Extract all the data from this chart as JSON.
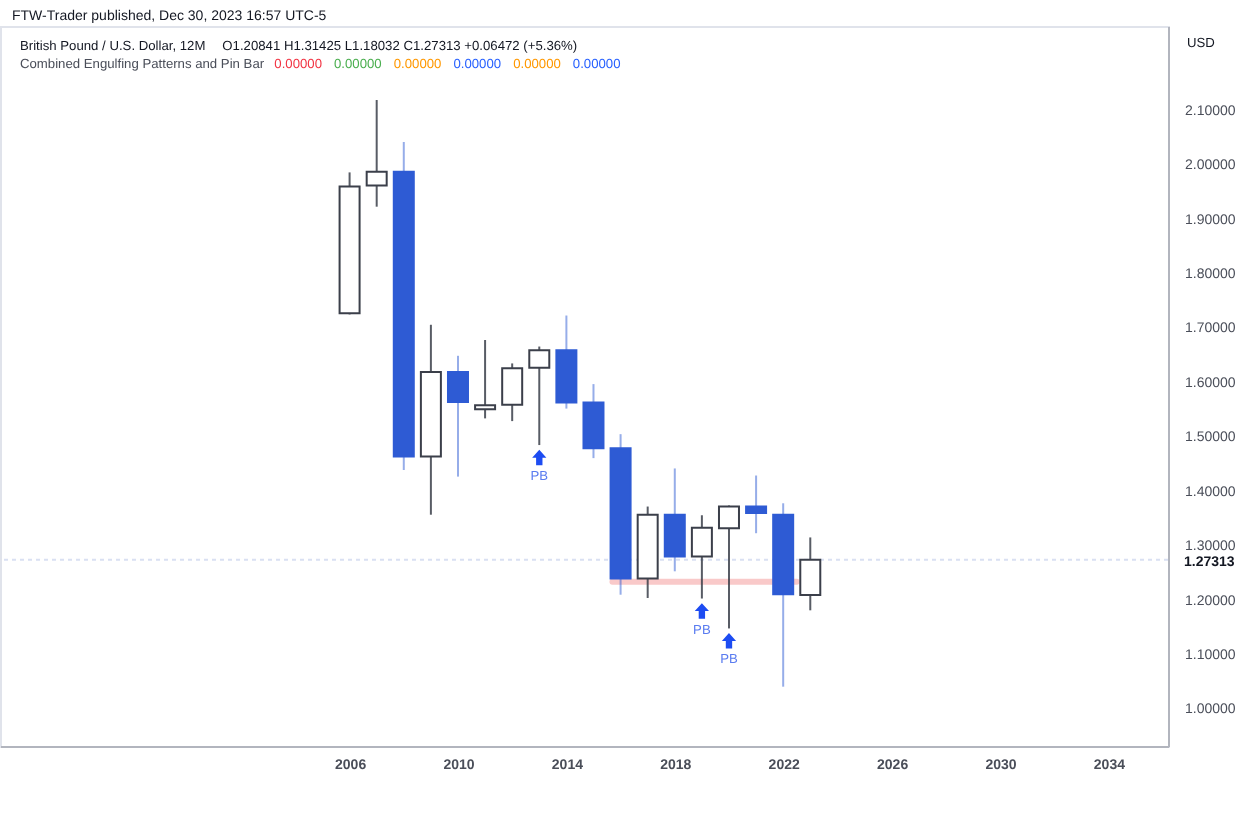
{
  "chart_data": {
    "type": "candlestick",
    "title": "FTW-Trader published, Dec 30, 2023 16:57 UTC-5",
    "subtitle": "British Pound / U.S. Dollar, 12M",
    "ylabel": "USD",
    "x": [
      2006,
      2007,
      2008,
      2009,
      2010,
      2011,
      2012,
      2013,
      2014,
      2015,
      2016,
      2017,
      2018,
      2019,
      2020,
      2021,
      2022,
      2023
    ],
    "ohlc": [
      [
        1.726,
        1.985,
        1.724,
        1.959
      ],
      [
        1.961,
        2.118,
        1.922,
        1.986
      ],
      [
        1.986,
        2.041,
        1.438,
        1.463
      ],
      [
        1.463,
        1.705,
        1.356,
        1.618
      ],
      [
        1.618,
        1.648,
        1.426,
        1.563
      ],
      [
        1.55,
        1.677,
        1.533,
        1.557
      ],
      [
        1.558,
        1.634,
        1.528,
        1.625
      ],
      [
        1.626,
        1.665,
        1.484,
        1.658
      ],
      [
        1.658,
        1.722,
        1.551,
        1.562
      ],
      [
        1.562,
        1.596,
        1.46,
        1.478
      ],
      [
        1.478,
        1.504,
        1.209,
        1.239
      ],
      [
        1.239,
        1.371,
        1.203,
        1.356
      ],
      [
        1.356,
        1.441,
        1.252,
        1.279
      ],
      [
        1.279,
        1.355,
        1.202,
        1.332
      ],
      [
        1.331,
        1.373,
        1.147,
        1.371
      ],
      [
        1.371,
        1.428,
        1.322,
        1.359
      ],
      [
        1.356,
        1.377,
        1.04,
        1.21
      ],
      [
        1.20841,
        1.31425,
        1.18032,
        1.27313
      ]
    ],
    "colors": [
      "#3b3f4a",
      "#3b3f4a",
      "#2e5bd4",
      "#3b3f4a",
      "#2e5bd4",
      "#3b3f4a",
      "#3b3f4a",
      "#3b3f4a",
      "#2e5bd4",
      "#2e5bd4",
      "#2e5bd4",
      "#3b3f4a",
      "#2e5bd4",
      "#3b3f4a",
      "#3b3f4a",
      "#2e5bd4",
      "#2e5bd4",
      "#3b3f4a"
    ],
    "series": [
      {
        "type": "line",
        "x": [
          2015.7,
          2022.5
        ],
        "values": [
          1.233,
          1.233
        ],
        "color": "#f9c9c9"
      }
    ],
    "ref_lines": [
      {
        "axis": "y",
        "value": 1.27313,
        "label": "1.27313",
        "line_style": "dotted",
        "color": "#d9e0f2"
      }
    ],
    "xlim": [
      1993.1,
      2036.2
    ],
    "xticks": [
      2006,
      2010,
      2014,
      2018,
      2022,
      2026,
      2030,
      2034
    ],
    "ylim": [
      0.931,
      2.254
    ],
    "yticks": [
      {
        "value": 1.0,
        "label": "1.00000"
      },
      {
        "value": 1.1,
        "label": "1.10000"
      },
      {
        "value": 1.2,
        "label": "1.20000"
      },
      {
        "value": 1.3,
        "label": "1.30000"
      },
      {
        "value": 1.4,
        "label": "1.40000"
      },
      {
        "value": 1.5,
        "label": "1.50000"
      },
      {
        "value": 1.6,
        "label": "1.60000"
      },
      {
        "value": 1.7,
        "label": "1.70000"
      },
      {
        "value": 1.8,
        "label": "1.80000"
      },
      {
        "value": 1.9,
        "label": "1.90000"
      },
      {
        "value": 2.0,
        "label": "2.00000"
      },
      {
        "value": 2.1,
        "label": "2.10000"
      }
    ],
    "annotations": [
      "O1.20841 H1.31425 L1.18032 C1.27313 +0.06472 (+5.36%)",
      "Combined Engulfing Patterns and Pin Bar",
      "0.00000",
      "0.00000",
      "0.00000",
      "0.00000",
      "0.00000",
      "0.00000",
      {
        "text": "PB",
        "x": 2013,
        "y": 1.484
      },
      {
        "text": "PB",
        "x": 2019,
        "y": 1.202
      },
      {
        "text": "PB",
        "x": 2020,
        "y": 1.147
      }
    ]
  }
}
